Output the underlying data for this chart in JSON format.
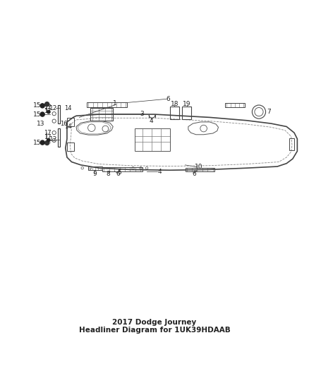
{
  "title": "2017 Dodge Journey Headliner Diagram for 1UK39HDAAB",
  "bg_color": "#ffffff",
  "line_color": "#555555",
  "dark_line": "#333333",
  "light_line": "#aaaaaa",
  "figure_width": 4.38,
  "figure_height": 5.33,
  "dpi": 100
}
